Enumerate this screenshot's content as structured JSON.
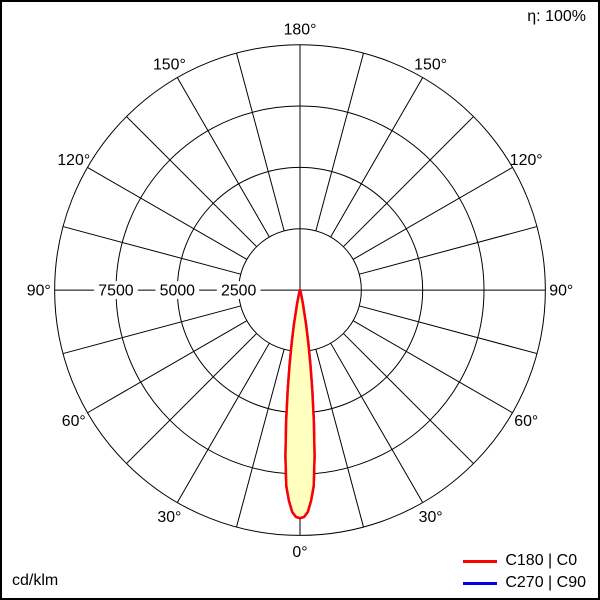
{
  "chart_data": {
    "type": "polar-line",
    "eta_label": "η: 100%",
    "unit_label": "cd/klm",
    "rmax": 10000,
    "radial_ticks": [
      2500,
      5000,
      7500,
      10000
    ],
    "radial_tick_labels": [
      "2500",
      "5000",
      "7500"
    ],
    "grid_angle_step": 15,
    "angle_label_step": 30,
    "angle_labels": [
      "0°",
      "30°",
      "60°",
      "90°",
      "120°",
      "150°",
      "180°"
    ],
    "angle_zero_position": "bottom",
    "grid_color": "#000000",
    "series": [
      {
        "name": "C270 | C90",
        "color": "#0000ee",
        "fill": "none",
        "gamma": [
          0,
          1,
          2,
          3,
          4,
          5,
          6,
          7,
          8,
          9,
          10,
          12,
          14,
          16,
          18,
          20,
          25,
          30,
          45,
          60,
          75,
          90,
          105,
          120,
          135,
          150,
          165,
          180
        ],
        "values": [
          9300,
          9250,
          9050,
          8600,
          8000,
          6800,
          5400,
          4100,
          3000,
          2100,
          1400,
          550,
          220,
          90,
          30,
          10,
          0,
          0,
          0,
          0,
          0,
          0,
          0,
          0,
          0,
          0,
          0,
          0
        ]
      },
      {
        "name": "C180 | C0",
        "color": "#ff0000",
        "fill": "#ffffc0",
        "gamma": [
          0,
          1,
          2,
          3,
          4,
          5,
          6,
          7,
          8,
          9,
          10,
          12,
          14,
          16,
          18,
          20,
          25,
          30,
          45,
          60,
          75,
          90,
          105,
          120,
          135,
          150,
          165,
          180
        ],
        "values": [
          9300,
          9250,
          9050,
          8600,
          8000,
          6800,
          5400,
          4100,
          3000,
          2100,
          1400,
          550,
          220,
          90,
          30,
          10,
          0,
          0,
          0,
          0,
          0,
          0,
          0,
          0,
          0,
          0,
          0,
          0
        ]
      }
    ]
  }
}
